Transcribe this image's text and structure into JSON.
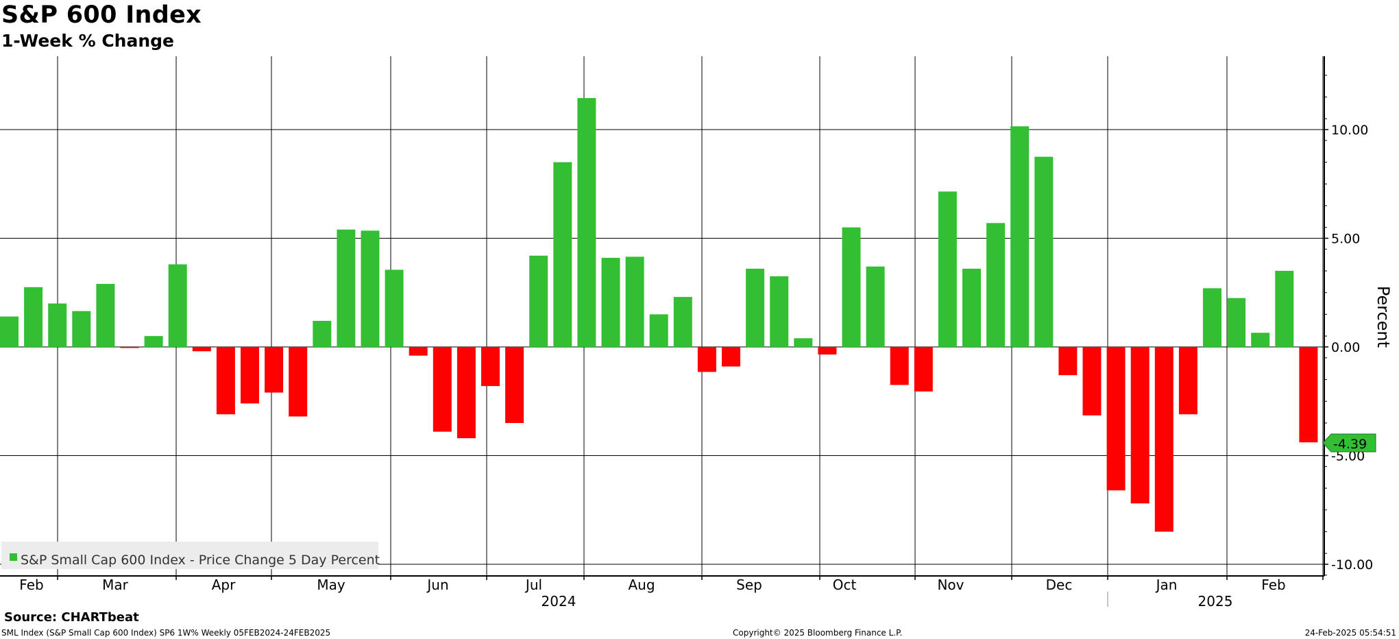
{
  "header": {
    "title": "S&P 600 Index",
    "subtitle": "1-Week % Change"
  },
  "footer": {
    "source": "Source: CHARTbeat",
    "left": "SML Index (S&P Small Cap 600 Index) SP6 1W%  Weekly 05FEB2024-24FEB2025",
    "center": "Copyright© 2025 Bloomberg Finance L.P.",
    "right": "24-Feb-2025 05:54:51"
  },
  "colors": {
    "positive": "#33bf33",
    "negative": "#ff0000",
    "grid": "#000000",
    "legend_bg": "#ececec"
  },
  "chart_data": {
    "type": "bar",
    "title": "S&P 600 Index",
    "subtitle": "1-Week % Change",
    "ylabel": "Percent",
    "ylim": [
      -10.5,
      13.5
    ],
    "yticks": [
      10.0,
      5.0,
      0.0,
      -5.0,
      -10.0
    ],
    "ytick_labels": [
      "10.00",
      "5.00",
      "0.00",
      "-5.00",
      "-10.00"
    ],
    "x_month_labels": [
      "Feb",
      "Mar",
      "Apr",
      "May",
      "Jun",
      "Jul",
      "Aug",
      "Sep",
      "Oct",
      "Nov",
      "Dec",
      "Jan",
      "Feb"
    ],
    "x_year_labels": [
      "2024",
      "2025"
    ],
    "grid": true,
    "legend_position": "bottom-left",
    "series": [
      {
        "name": "S&P Small Cap 600 Index - Price Change 5 Day Percent",
        "values": [
          1.4,
          2.75,
          2.0,
          1.65,
          2.9,
          -0.05,
          0.5,
          3.8,
          -0.2,
          -3.1,
          -2.6,
          -2.1,
          -3.2,
          1.2,
          5.4,
          5.35,
          3.55,
          -0.4,
          -3.9,
          -4.2,
          -1.8,
          -3.5,
          4.2,
          8.5,
          11.45,
          4.1,
          4.15,
          1.5,
          2.3,
          -1.15,
          -0.9,
          3.6,
          3.25,
          0.4,
          -0.35,
          5.5,
          3.7,
          -1.75,
          -2.05,
          7.15,
          3.6,
          5.7,
          10.15,
          8.75,
          -1.3,
          -3.15,
          -6.6,
          -7.2,
          -8.5,
          -3.1,
          2.7,
          2.25,
          0.65,
          3.5,
          -4.39
        ]
      }
    ],
    "last_value_label": "-4.39"
  }
}
